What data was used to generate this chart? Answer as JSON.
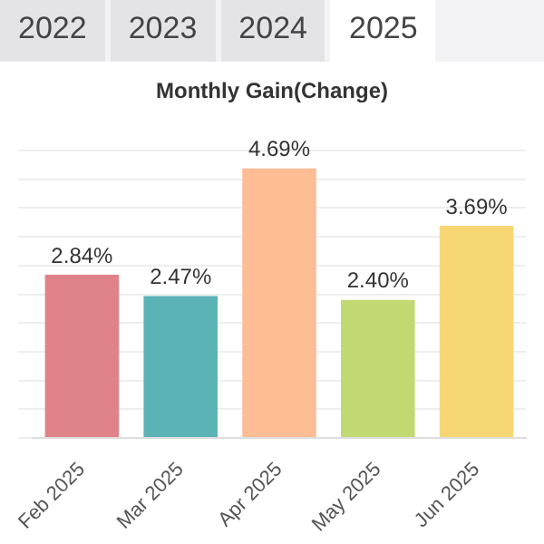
{
  "chart_data": {
    "type": "bar",
    "title": "Monthly Gain(Change)",
    "annotations": [
      "2022",
      "2023",
      "2024",
      "2025"
    ],
    "categories": [
      "Feb 2025",
      "Mar 2025",
      "Apr 2025",
      "May 2025",
      "Jun 2025"
    ],
    "values": [
      2.84,
      2.47,
      4.69,
      2.4,
      3.69
    ],
    "colors": [
      "#e08388",
      "#5cb3b6",
      "#febd95",
      "#c2d873",
      "#f7d774"
    ],
    "value_labels": [
      "2.84%",
      "2.47%",
      "4.69%",
      "2.40%",
      "3.69%"
    ],
    "grid": "y",
    "legend": false
  }
}
